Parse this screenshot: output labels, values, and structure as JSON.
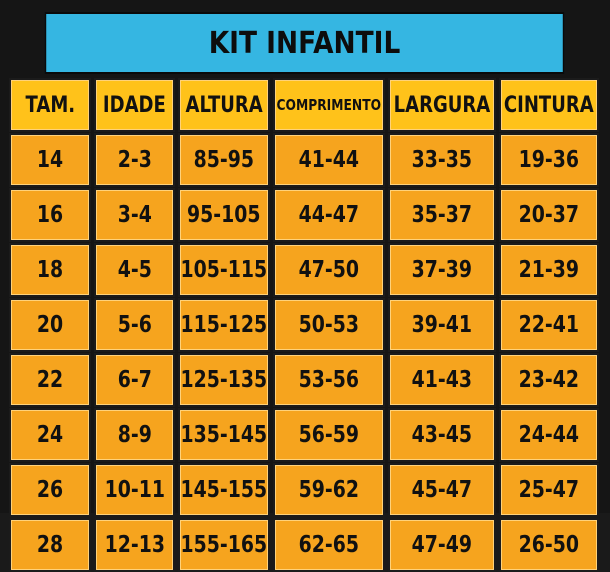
{
  "title": "KIT INFANTIL",
  "headers": [
    "TAM.",
    "IDADE",
    "ALTURA",
    "COMPRIMENTO",
    "LARGURA",
    "CINTURA"
  ],
  "rows": [
    [
      "14",
      "2-3",
      "85-95",
      "41-44",
      "33-35",
      "19-36"
    ],
    [
      "16",
      "3-4",
      "95-105",
      "44-47",
      "35-37",
      "20-37"
    ],
    [
      "18",
      "4-5",
      "105-115",
      "47-50",
      "37-39",
      "21-39"
    ],
    [
      "20",
      "5-6",
      "115-125",
      "50-53",
      "39-41",
      "22-41"
    ],
    [
      "22",
      "6-7",
      "125-135",
      "53-56",
      "41-43",
      "23-42"
    ],
    [
      "24",
      "8-9",
      "135-145",
      "56-59",
      "43-45",
      "24-44"
    ],
    [
      "26",
      "10-11",
      "145-155",
      "59-62",
      "45-47",
      "25-47"
    ],
    [
      "28",
      "12-13",
      "155-165",
      "62-65",
      "47-49",
      "26-50"
    ]
  ],
  "colors": {
    "title_bg": "#35b6e2",
    "header_bg": "#ffc21a",
    "cell_bg": "#f6a41e",
    "border": "#1b1b1b"
  }
}
